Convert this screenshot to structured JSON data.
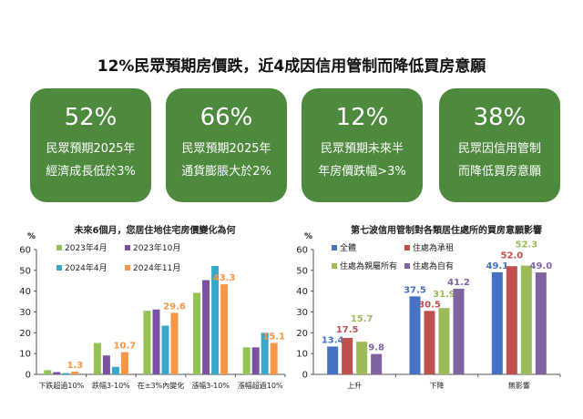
{
  "header": {
    "title": "12%民眾預期房價跌，近4成因信用管制而降低買房意願"
  },
  "card_color": "#4e8a3e",
  "cards": [
    {
      "value": "52%",
      "line1": "民眾預期2025年",
      "line2": "經濟成長低於3%"
    },
    {
      "value": "66%",
      "line1": "民眾預期2025年",
      "line2": "通貨膨脹大於2%"
    },
    {
      "value": "12%",
      "line1": "民眾預期未來半",
      "line2": "年房價跌幅>3%"
    },
    {
      "value": "38%",
      "line1": "民眾因信用管制",
      "line2": "而降低買房意願"
    }
  ],
  "chart_data": [
    {
      "type": "bar",
      "title": "未來6個月，您居住地住宅房價變化為何",
      "ylabel": "%",
      "ylim": [
        0,
        60
      ],
      "yticks": [
        0,
        10,
        20,
        30,
        40,
        50,
        60
      ],
      "categories": [
        "下跌超過10%",
        "跌幅3-10%",
        "在±3%內變化",
        "漲幅3-10%",
        "漲幅超過10%"
      ],
      "legend": "top-left",
      "series": [
        {
          "name": "2023年4月",
          "color": "#92c353",
          "values": [
            2.0,
            15.1,
            30.6,
            39.2,
            13.0
          ],
          "labels": false
        },
        {
          "name": "2023年10月",
          "color": "#7b52a1",
          "values": [
            1.1,
            9.1,
            31.2,
            45.3,
            13.0
          ],
          "labels": false
        },
        {
          "name": "2024年4月",
          "color": "#38a7c9",
          "values": [
            0.6,
            3.6,
            23.4,
            52.1,
            20.0
          ],
          "labels": false
        },
        {
          "name": "2024年11月",
          "color": "#f79646",
          "values": [
            1.3,
            10.7,
            29.6,
            43.3,
            15.1
          ],
          "labels": true
        }
      ]
    },
    {
      "type": "bar",
      "title": "第七波信用管制對各類居住處所的買房意願影響",
      "ylabel": "%",
      "ylim": [
        0,
        60
      ],
      "yticks": [
        0,
        10,
        20,
        30,
        40,
        50,
        60
      ],
      "categories": [
        "上升",
        "下降",
        "無影響"
      ],
      "legend": "top-left",
      "series": [
        {
          "name": "全體",
          "color": "#4472c4",
          "values": [
            13.4,
            37.5,
            49.1
          ],
          "labels": true
        },
        {
          "name": "住處為承租",
          "color": "#c0504d",
          "values": [
            17.5,
            30.5,
            52.0
          ],
          "labels": true
        },
        {
          "name": "住處為親屬所有",
          "color": "#9bbb59",
          "values": [
            15.7,
            31.9,
            52.3
          ],
          "labels": true
        },
        {
          "name": "住處為自有",
          "color": "#8064a2",
          "values": [
            9.8,
            41.2,
            49.0
          ],
          "labels": true
        }
      ]
    }
  ]
}
